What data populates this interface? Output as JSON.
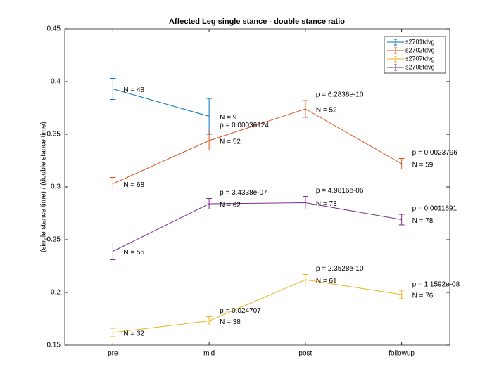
{
  "chart_data": {
    "type": "errorbar",
    "title": "Affected Leg single stance - double stance ratio",
    "y_label": "(single stance time) / (double stance time)",
    "categories": [
      "pre",
      "mid",
      "post",
      "followup"
    ],
    "ylim": [
      0.15,
      0.45
    ],
    "yticks": [
      0.15,
      0.2,
      0.25,
      0.3,
      0.35,
      0.4,
      0.45
    ],
    "legend_position": "upper right",
    "series": [
      {
        "name": "s2701tdvg",
        "color": "#0072bd",
        "values": [
          0.393,
          0.367,
          null,
          null
        ],
        "errors": [
          0.01,
          0.017,
          null,
          null
        ],
        "n_labels": [
          "N = 48",
          "N = 9",
          null,
          null
        ],
        "p_labels": [
          null,
          null,
          null,
          null
        ]
      },
      {
        "name": "s2702tdvg",
        "color": "#d95319",
        "values": [
          0.303,
          0.344,
          0.374,
          0.322
        ],
        "errors": [
          0.006,
          0.009,
          0.008,
          0.005
        ],
        "n_labels": [
          "N = 68",
          "N = 52",
          "N = 52",
          "N = 59"
        ],
        "p_labels": [
          null,
          "p = 0.00036124",
          "p = 6.2838e-10",
          "p = 0.0023796"
        ]
      },
      {
        "name": "s2707tdvg",
        "color": "#edb120",
        "values": [
          0.162,
          0.173,
          0.212,
          0.198
        ],
        "errors": [
          0.004,
          0.004,
          0.005,
          0.004
        ],
        "n_labels": [
          "N = 32",
          "N = 38",
          "N = 61",
          "N = 76"
        ],
        "p_labels": [
          null,
          "p = 0.024707",
          "p = 2.3528e-10",
          "p = 1.1592e-08"
        ]
      },
      {
        "name": "s2708tdvg",
        "color": "#7e2f8e",
        "values": [
          0.239,
          0.284,
          0.285,
          0.269
        ],
        "errors": [
          0.008,
          0.005,
          0.006,
          0.005
        ],
        "n_labels": [
          "N = 55",
          "N = 62",
          "N = 73",
          "N = 78"
        ],
        "p_labels": [
          null,
          "p = 3.4338e-07",
          "p = 4.9816e-06",
          "p = 0.0011691"
        ]
      }
    ]
  }
}
